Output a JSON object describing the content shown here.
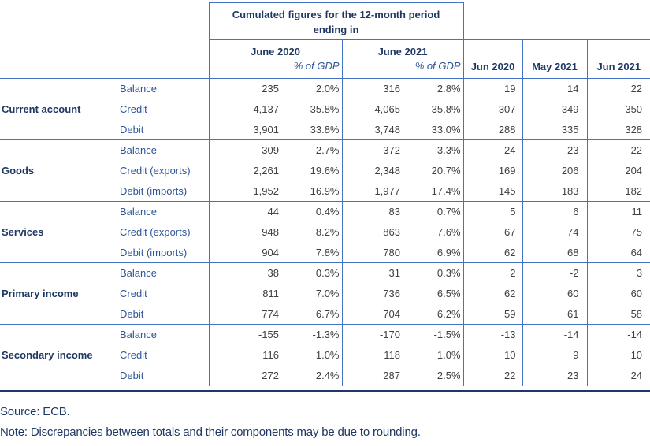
{
  "table": {
    "header": {
      "cumulated_title": "Cumulated figures for the 12-month period ending in",
      "annual_columns": [
        {
          "label": "June 2020",
          "sub": "% of GDP"
        },
        {
          "label": "June 2021",
          "sub": "% of GDP"
        }
      ],
      "monthly_columns": [
        "Jun 2020",
        "May 2021",
        "Jun 2021"
      ]
    },
    "sections": [
      {
        "category": "Current account",
        "rows": [
          {
            "label": "Balance",
            "values": [
              "235",
              "2.0%",
              "316",
              "2.8%",
              "19",
              "14",
              "22"
            ]
          },
          {
            "label": "Credit",
            "values": [
              "4,137",
              "35.8%",
              "4,065",
              "35.8%",
              "307",
              "349",
              "350"
            ]
          },
          {
            "label": "Debit",
            "values": [
              "3,901",
              "33.8%",
              "3,748",
              "33.0%",
              "288",
              "335",
              "328"
            ]
          }
        ]
      },
      {
        "category": "Goods",
        "rows": [
          {
            "label": "Balance",
            "values": [
              "309",
              "2.7%",
              "372",
              "3.3%",
              "24",
              "23",
              "22"
            ]
          },
          {
            "label": "Credit (exports)",
            "values": [
              "2,261",
              "19.6%",
              "2,348",
              "20.7%",
              "169",
              "206",
              "204"
            ]
          },
          {
            "label": "Debit (imports)",
            "values": [
              "1,952",
              "16.9%",
              "1,977",
              "17.4%",
              "145",
              "183",
              "182"
            ]
          }
        ]
      },
      {
        "category": "Services",
        "rows": [
          {
            "label": "Balance",
            "values": [
              "44",
              "0.4%",
              "83",
              "0.7%",
              "5",
              "6",
              "11"
            ]
          },
          {
            "label": "Credit (exports)",
            "values": [
              "948",
              "8.2%",
              "863",
              "7.6%",
              "67",
              "74",
              "75"
            ]
          },
          {
            "label": "Debit (imports)",
            "values": [
              "904",
              "7.8%",
              "780",
              "6.9%",
              "62",
              "68",
              "64"
            ]
          }
        ]
      },
      {
        "category": "Primary income",
        "rows": [
          {
            "label": "Balance",
            "values": [
              "38",
              "0.3%",
              "31",
              "0.3%",
              "2",
              "-2",
              "3"
            ]
          },
          {
            "label": "Credit",
            "values": [
              "811",
              "7.0%",
              "736",
              "6.5%",
              "62",
              "60",
              "60"
            ]
          },
          {
            "label": "Debit",
            "values": [
              "774",
              "6.7%",
              "704",
              "6.2%",
              "59",
              "61",
              "58"
            ]
          }
        ]
      },
      {
        "category": "Secondary income",
        "rows": [
          {
            "label": "Balance",
            "values": [
              "-155",
              "-1.3%",
              "-170",
              "-1.5%",
              "-13",
              "-14",
              "-14"
            ]
          },
          {
            "label": "Credit",
            "values": [
              "116",
              "1.0%",
              "118",
              "1.0%",
              "10",
              "9",
              "10"
            ]
          },
          {
            "label": "Debit",
            "values": [
              "272",
              "2.4%",
              "287",
              "2.5%",
              "22",
              "23",
              "24"
            ]
          }
        ]
      }
    ]
  },
  "footer": {
    "source": "Source: ECB.",
    "note": "Note: Discrepancies between totals and their components may be due to rounding."
  },
  "colors": {
    "border_blue": "#4472c4",
    "rule_navy": "#1f3864",
    "heading_navy": "#1f3864",
    "label_blue": "#2e5597",
    "number_gray": "#404040"
  }
}
